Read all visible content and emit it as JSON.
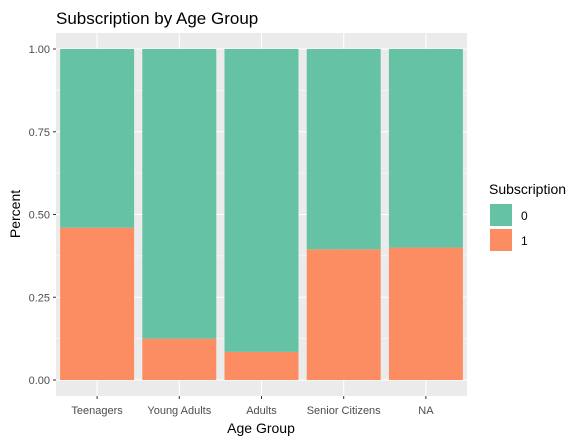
{
  "chart_data": {
    "type": "bar",
    "stacked": true,
    "title": "Subscription by Age Group",
    "xlabel": "Age Group",
    "ylabel": "Percent",
    "categories": [
      "Teenagers",
      "Young Adults",
      "Adults",
      "Senior Citizens",
      "NA"
    ],
    "series": [
      {
        "name": "0",
        "color": "#66c2a5",
        "values": [
          0.54,
          0.875,
          0.915,
          0.605,
          0.6
        ]
      },
      {
        "name": "1",
        "color": "#fc8d62",
        "values": [
          0.46,
          0.125,
          0.085,
          0.395,
          0.4
        ]
      }
    ],
    "ylim": [
      0,
      1
    ],
    "yticks": [
      "0.00",
      "0.25",
      "0.50",
      "0.75",
      "1.00"
    ],
    "grid": true,
    "legend": {
      "title": "Subscription",
      "position": "right"
    },
    "panel_background": "#ebebeb",
    "grid_color": "#ffffff"
  }
}
